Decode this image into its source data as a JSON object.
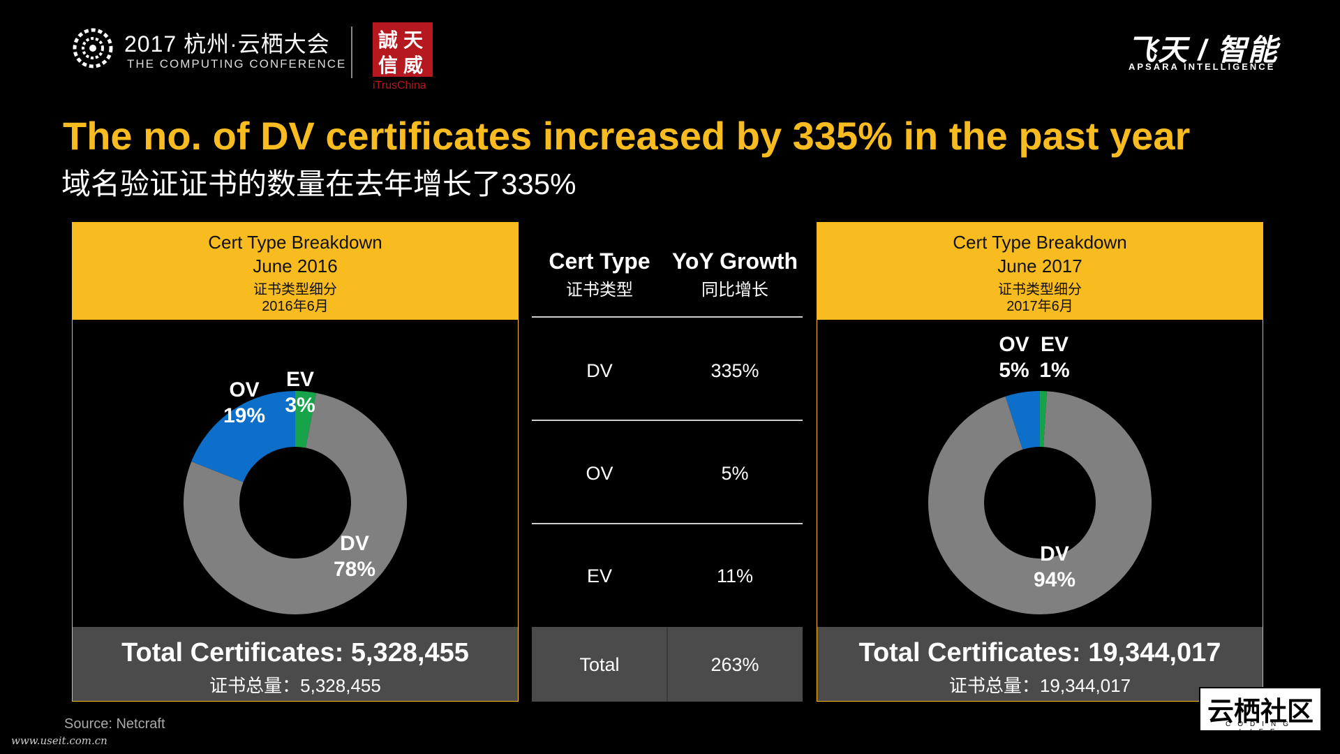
{
  "header": {
    "conference_title": "2017 杭州·云栖大会",
    "conference_subtitle": "THE COMPUTING CONFERENCE",
    "partner_stamp": [
      "誠",
      "天",
      "信",
      "威"
    ],
    "partner_name": "iTrusChina",
    "brand_cn": "飞天 / 智能",
    "brand_en": "APSARA INTELLIGENCE"
  },
  "title_en": "The no. of DV certificates increased by 335% in the past year",
  "title_cn": "域名验证证书的数量在去年增长了335%",
  "chart_data": [
    {
      "type": "pie",
      "title": "Cert Type Breakdown",
      "subtitle": "June 2016",
      "title_cn": "证书类型细分",
      "subtitle_cn": "2016年6月",
      "categories": [
        "DV",
        "OV",
        "EV"
      ],
      "values": [
        78,
        19,
        3
      ],
      "value_labels": [
        "78%",
        "19%",
        "3%"
      ],
      "colors": [
        "#808080",
        "#0d6fc9",
        "#17a34a"
      ],
      "total_label": "Total Certificates: 5,328,455",
      "total_label_cn": "证书总量：5,328,455"
    },
    {
      "type": "pie",
      "title": "Cert Type Breakdown",
      "subtitle": "June 2017",
      "title_cn": "证书类型细分",
      "subtitle_cn": "2017年6月",
      "categories": [
        "DV",
        "OV",
        "EV"
      ],
      "values": [
        94,
        5,
        1
      ],
      "value_labels": [
        "94%",
        "5%",
        "1%"
      ],
      "colors": [
        "#808080",
        "#0d6fc9",
        "#17a34a"
      ],
      "total_label": "Total Certificates: 19,344,017",
      "total_label_cn": "证书总量：19,344,017"
    },
    {
      "type": "table",
      "headers": [
        "Cert Type",
        "YoY Growth"
      ],
      "headers_cn": [
        "证书类型",
        "同比增长"
      ],
      "rows": [
        [
          "DV",
          "335%"
        ],
        [
          "OV",
          "5%"
        ],
        [
          "EV",
          "11%"
        ]
      ],
      "total_row": [
        "Total",
        "263%"
      ]
    }
  ],
  "source": "Source: Netcraft",
  "watermark": "www.useit.com.cn",
  "community_logo": {
    "cn": "云栖社区",
    "en": "CODING LIFE"
  }
}
